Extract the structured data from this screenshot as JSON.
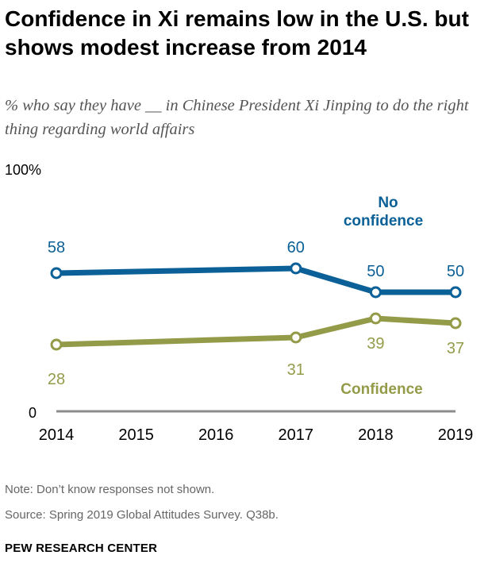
{
  "title": "Confidence in Xi remains low in the U.S. but shows modest increase from 2014",
  "subtitle": "% who say they have __ in Chinese President Xi Jinping to do the right thing regarding world affairs",
  "note": "Note: Don’t know responses not shown.",
  "source": "Source: Spring 2019 Global Attitudes Survey. Q38b.",
  "brand": "PEW RESEARCH CENTER",
  "chart_data": {
    "type": "line",
    "x": [
      2014,
      2017,
      2018,
      2019
    ],
    "x_ticks": [
      "2014",
      "2015",
      "2016",
      "2017",
      "2018",
      "2019"
    ],
    "xlim": [
      2014,
      2019
    ],
    "ylim": [
      0,
      100
    ],
    "y_tick_labels": [
      "0",
      "100%"
    ],
    "grid": false,
    "series": [
      {
        "name": "No confidence",
        "values": [
          58,
          60,
          50,
          50
        ],
        "color": "#0b6097"
      },
      {
        "name": "Confidence",
        "values": [
          28,
          31,
          39,
          37
        ],
        "color": "#949b48"
      }
    ],
    "axis_color": "#8c8c8c"
  }
}
